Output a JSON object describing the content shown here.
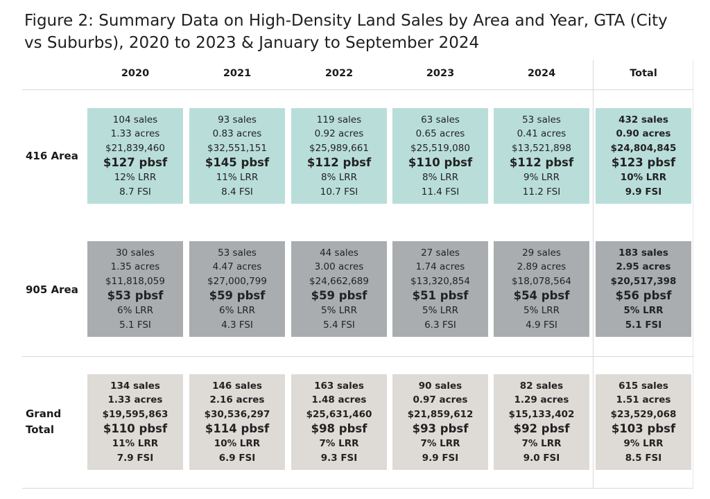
{
  "title": "Figure 2: Summary Data on High-Density Land Sales by Area and Year, GTA (City vs Suburbs), 2020 to 2023 & January to September 2024",
  "colors": {
    "area_416": "#b9deda",
    "area_905": "#a9adb0",
    "grand_total": "#dedad6"
  },
  "chart_data": {
    "type": "table",
    "title": "Figure 2: Summary Data on High-Density Land Sales by Area and Year, GTA (City vs Suburbs), 2020 to 2023 & January to September 2024",
    "columns": [
      "2020",
      "2021",
      "2022",
      "2023",
      "2024",
      "Total"
    ],
    "rows": [
      {
        "label": "416 Area",
        "cells": [
          {
            "sales": "104 sales",
            "acres": "1.33 acres",
            "amount": "$21,839,460",
            "pbsf": "$127 pbsf",
            "lrr": "12% LRR",
            "fsi": "8.7 FSI"
          },
          {
            "sales": "93 sales",
            "acres": "0.83 acres",
            "amount": "$32,551,151",
            "pbsf": "$145 pbsf",
            "lrr": "11% LRR",
            "fsi": "8.4 FSI"
          },
          {
            "sales": "119 sales",
            "acres": "0.92 acres",
            "amount": "$25,989,661",
            "pbsf": "$112 pbsf",
            "lrr": "8% LRR",
            "fsi": "10.7 FSI"
          },
          {
            "sales": "63 sales",
            "acres": "0.65 acres",
            "amount": "$25,519,080",
            "pbsf": "$110 pbsf",
            "lrr": "8% LRR",
            "fsi": "11.4 FSI"
          },
          {
            "sales": "53 sales",
            "acres": "0.41 acres",
            "amount": "$13,521,898",
            "pbsf": "$112 pbsf",
            "lrr": "9% LRR",
            "fsi": "11.2 FSI"
          },
          {
            "sales": "432 sales",
            "acres": "0.90 acres",
            "amount": "$24,804,845",
            "pbsf": "$123 pbsf",
            "lrr": "10% LRR",
            "fsi": "9.9 FSI"
          }
        ]
      },
      {
        "label": "905 Area",
        "cells": [
          {
            "sales": "30 sales",
            "acres": "1.35 acres",
            "amount": "$11,818,059",
            "pbsf": "$53 pbsf",
            "lrr": "6% LRR",
            "fsi": "5.1 FSI"
          },
          {
            "sales": "53 sales",
            "acres": "4.47 acres",
            "amount": "$27,000,799",
            "pbsf": "$59 pbsf",
            "lrr": "6% LRR",
            "fsi": "4.3 FSI"
          },
          {
            "sales": "44 sales",
            "acres": "3.00 acres",
            "amount": "$24,662,689",
            "pbsf": "$59 pbsf",
            "lrr": "5% LRR",
            "fsi": "5.4 FSI"
          },
          {
            "sales": "27 sales",
            "acres": "1.74 acres",
            "amount": "$13,320,854",
            "pbsf": "$51 pbsf",
            "lrr": "5% LRR",
            "fsi": "6.3 FSI"
          },
          {
            "sales": "29 sales",
            "acres": "2.89 acres",
            "amount": "$18,078,564",
            "pbsf": "$54 pbsf",
            "lrr": "5% LRR",
            "fsi": "4.9 FSI"
          },
          {
            "sales": "183 sales",
            "acres": "2.95 acres",
            "amount": "$20,517,398",
            "pbsf": "$56 pbsf",
            "lrr": "5% LRR",
            "fsi": "5.1 FSI"
          }
        ]
      },
      {
        "label": "Grand Total",
        "cells": [
          {
            "sales": "134 sales",
            "acres": "1.33 acres",
            "amount": "$19,595,863",
            "pbsf": "$110 pbsf",
            "lrr": "11% LRR",
            "fsi": "7.9 FSI"
          },
          {
            "sales": "146 sales",
            "acres": "2.16 acres",
            "amount": "$30,536,297",
            "pbsf": "$114 pbsf",
            "lrr": "10% LRR",
            "fsi": "6.9 FSI"
          },
          {
            "sales": "163 sales",
            "acres": "1.48 acres",
            "amount": "$25,631,460",
            "pbsf": "$98 pbsf",
            "lrr": "7% LRR",
            "fsi": "9.3 FSI"
          },
          {
            "sales": "90 sales",
            "acres": "0.97 acres",
            "amount": "$21,859,612",
            "pbsf": "$93 pbsf",
            "lrr": "7% LRR",
            "fsi": "9.9 FSI"
          },
          {
            "sales": "82 sales",
            "acres": "1.29 acres",
            "amount": "$15,133,402",
            "pbsf": "$92 pbsf",
            "lrr": "7% LRR",
            "fsi": "9.0 FSI"
          },
          {
            "sales": "615 sales",
            "acres": "1.51 acres",
            "amount": "$23,529,068",
            "pbsf": "$103 pbsf",
            "lrr": "9% LRR",
            "fsi": "8.5 FSI"
          }
        ]
      }
    ]
  }
}
